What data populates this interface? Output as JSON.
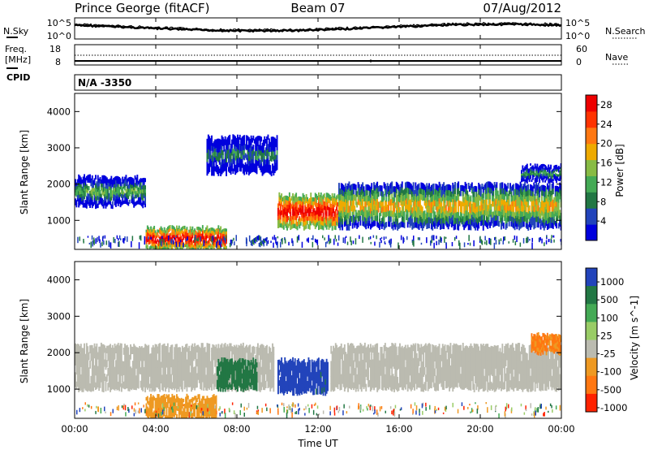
{
  "header": {
    "station": "Prince George (fitACF)",
    "beam": "Beam 07",
    "date": "07/Aug/2012"
  },
  "top_panels": {
    "noise_left_label": "N.Sky",
    "noise_right_label": "N.Search",
    "noise_ticks_left": [
      "10^5",
      "10^0"
    ],
    "noise_ticks_right": [
      "10^5",
      "10^0"
    ],
    "freq_label_1": "Freq.",
    "freq_label_2": "[MHz]",
    "freq_ticks": [
      "18",
      "8"
    ],
    "nave_label": "Nave",
    "nave_ticks": [
      "60",
      "0"
    ],
    "cpid_label": "CPID",
    "cpid_value": "N/A -3350"
  },
  "colors": {
    "power_scale": [
      "#0000dd",
      "#2244bb",
      "#227744",
      "#44aa55",
      "#88bb44",
      "#eeaa00",
      "#ff7711",
      "#ff3300",
      "#ee0000"
    ],
    "velocity_scale": [
      "#2244bb",
      "#227744",
      "#44aa55",
      "#99cc66",
      "#bbbbb0",
      "#ee9922",
      "#ff7711",
      "#ff2200"
    ],
    "ground_scatter": "#bbbbb0"
  },
  "chart_data": [
    {
      "type": "heatmap",
      "title": "",
      "ylabel": "Slant Range [km]",
      "xlabel": "",
      "y_ticks": [
        "1000",
        "2000",
        "3000",
        "4000"
      ],
      "ylim": [
        200,
        4500
      ],
      "xlim": [
        0,
        24
      ],
      "colorbar": {
        "label": "Power [dB]",
        "ticks": [
          "4",
          "8",
          "12",
          "16",
          "20",
          "24",
          "28"
        ],
        "range": [
          0,
          30
        ]
      },
      "echo_bands": [
        {
          "t": [
            0,
            3.5
          ],
          "range_km": [
            1400,
            2200
          ],
          "power_db": 12
        },
        {
          "t": [
            3.5,
            7.5
          ],
          "range_km": [
            200,
            800
          ],
          "power_db": 28
        },
        {
          "t": [
            6.5,
            10
          ],
          "range_km": [
            2300,
            3300
          ],
          "power_db": 8
        },
        {
          "t": [
            10,
            13
          ],
          "range_km": [
            800,
            1700
          ],
          "power_db": 28
        },
        {
          "t": [
            13,
            24
          ],
          "range_km": [
            800,
            2000
          ],
          "power_db": 18
        },
        {
          "t": [
            22,
            24
          ],
          "range_km": [
            2100,
            2500
          ],
          "power_db": 10
        }
      ]
    },
    {
      "type": "heatmap",
      "title": "",
      "ylabel": "Slant Range [km]",
      "xlabel": "Time UT",
      "x_ticks": [
        "00:00",
        "04:00",
        "08:00",
        "12:00",
        "16:00",
        "20:00",
        "00:00"
      ],
      "y_ticks": [
        "1000",
        "2000",
        "3000",
        "4000"
      ],
      "ylim": [
        200,
        4500
      ],
      "xlim": [
        0,
        24
      ],
      "colorbar": {
        "label": "Velocity [m s^-1]",
        "ticks": [
          "1000",
          "500",
          "100",
          "25",
          "-25",
          "-100",
          "-500",
          "-1000"
        ],
        "range": [
          -1000,
          1000
        ]
      },
      "echo_bands": [
        {
          "t": [
            0,
            24
          ],
          "range_km": [
            1000,
            2200
          ],
          "velocity_ms": 0,
          "ground_scatter": true
        },
        {
          "t": [
            3.5,
            7
          ],
          "range_km": [
            200,
            800
          ],
          "velocity_ms": -200
        },
        {
          "t": [
            7,
            9
          ],
          "range_km": [
            1000,
            1800
          ],
          "velocity_ms": 300
        },
        {
          "t": [
            10,
            12.5
          ],
          "range_km": [
            900,
            1800
          ],
          "velocity_ms": 800
        },
        {
          "t": [
            22.5,
            24
          ],
          "range_km": [
            2000,
            2500
          ],
          "velocity_ms": -600
        }
      ]
    }
  ]
}
